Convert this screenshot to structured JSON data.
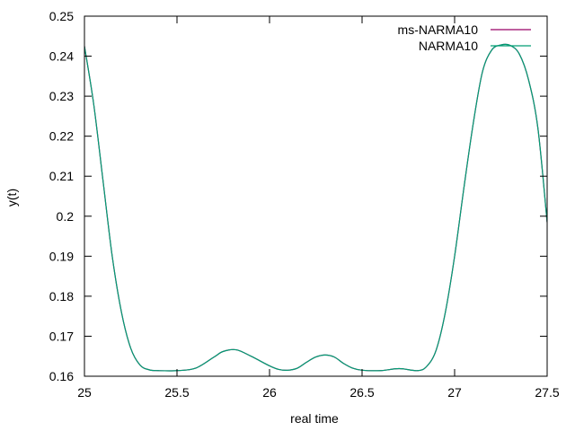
{
  "chart_data": {
    "type": "line",
    "xlabel": "real time",
    "ylabel": "y(t)",
    "xlim": [
      25,
      27.5
    ],
    "ylim": [
      0.16,
      0.25
    ],
    "grid": false,
    "legend_position": "top-right",
    "x_ticks": [
      25,
      25.5,
      26,
      26.5,
      27,
      27.5
    ],
    "x_tick_labels": [
      "25",
      "25.5",
      "26",
      "26.5",
      "27",
      "27.5"
    ],
    "y_ticks": [
      0.16,
      0.17,
      0.18,
      0.19,
      0.2,
      0.21,
      0.22,
      0.23,
      0.24,
      0.25
    ],
    "y_tick_labels": [
      "0.16",
      "0.17",
      "0.18",
      "0.19",
      "0.2",
      "0.21",
      "0.22",
      "0.23",
      "0.24",
      "0.25"
    ],
    "series": [
      {
        "name": "ms-NARMA10",
        "color": "#990066",
        "x": [
          25.0,
          25.05,
          25.1,
          25.15,
          25.2,
          25.25,
          25.3,
          25.35,
          25.4,
          25.5,
          25.6,
          25.7,
          25.75,
          25.82,
          25.9,
          26.0,
          26.05,
          26.1,
          26.15,
          26.2,
          26.25,
          26.3,
          26.35,
          26.4,
          26.45,
          26.5,
          26.6,
          26.7,
          26.8,
          26.85,
          26.9,
          26.95,
          27.0,
          27.05,
          27.1,
          27.15,
          27.2,
          27.25,
          27.3,
          27.35,
          27.4,
          27.45,
          27.5
        ],
        "y": [
          0.2425,
          0.228,
          0.209,
          0.19,
          0.176,
          0.167,
          0.1628,
          0.1616,
          0.1614,
          0.1614,
          0.162,
          0.1648,
          0.1662,
          0.1666,
          0.165,
          0.1626,
          0.1617,
          0.1615,
          0.162,
          0.1635,
          0.1648,
          0.1653,
          0.1648,
          0.1632,
          0.162,
          0.1615,
          0.1614,
          0.1619,
          0.1614,
          0.1625,
          0.1665,
          0.176,
          0.19,
          0.207,
          0.223,
          0.236,
          0.2415,
          0.2428,
          0.2427,
          0.2405,
          0.234,
          0.222,
          0.1985
        ]
      },
      {
        "name": "NARMA10",
        "color": "#009e73",
        "x": [
          25.0,
          25.05,
          25.1,
          25.15,
          25.2,
          25.25,
          25.3,
          25.35,
          25.4,
          25.5,
          25.6,
          25.7,
          25.75,
          25.82,
          25.9,
          26.0,
          26.05,
          26.1,
          26.15,
          26.2,
          26.25,
          26.3,
          26.35,
          26.4,
          26.45,
          26.5,
          26.6,
          26.7,
          26.8,
          26.85,
          26.9,
          26.95,
          27.0,
          27.05,
          27.1,
          27.15,
          27.2,
          27.25,
          27.3,
          27.35,
          27.4,
          27.45,
          27.5
        ],
        "y": [
          0.2425,
          0.228,
          0.209,
          0.19,
          0.176,
          0.167,
          0.1628,
          0.1616,
          0.1614,
          0.1614,
          0.162,
          0.1648,
          0.1662,
          0.1666,
          0.165,
          0.1626,
          0.1617,
          0.1615,
          0.162,
          0.1635,
          0.1648,
          0.1653,
          0.1648,
          0.1632,
          0.162,
          0.1615,
          0.1614,
          0.1619,
          0.1614,
          0.1625,
          0.1665,
          0.176,
          0.19,
          0.207,
          0.223,
          0.236,
          0.2415,
          0.2428,
          0.2427,
          0.2405,
          0.234,
          0.222,
          0.1985
        ]
      }
    ]
  }
}
